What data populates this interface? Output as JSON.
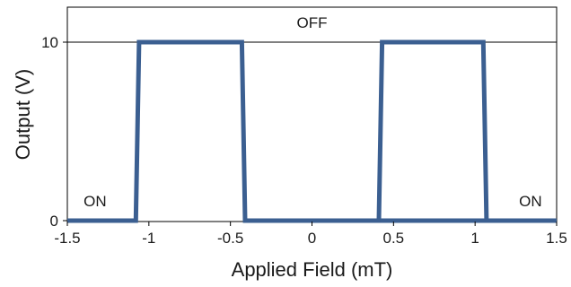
{
  "chart_data": {
    "type": "line",
    "title": "",
    "xlabel": "Applied Field (mT)",
    "ylabel": "Output (V)",
    "xlim": [
      -1.5,
      1.5
    ],
    "ylim": [
      -0.2,
      12
    ],
    "x_ticks": [
      {
        "value": -1.5,
        "label": "-1.5"
      },
      {
        "value": -1,
        "label": "-1"
      },
      {
        "value": -0.5,
        "label": "-0.5"
      },
      {
        "value": 0,
        "label": "0"
      },
      {
        "value": 0.5,
        "label": "0.5"
      },
      {
        "value": 1,
        "label": "1"
      },
      {
        "value": 1.5,
        "label": "1.5"
      }
    ],
    "y_ticks": [
      {
        "value": 0,
        "label": "0"
      },
      {
        "value": 10,
        "label": "10"
      }
    ],
    "grid": false,
    "reference_line": {
      "y": 10
    },
    "color": "#3b5f91",
    "series": [
      {
        "x": [
          -1.5,
          -1.08,
          -1.06,
          -0.43,
          -0.41,
          0.41,
          0.43,
          1.05,
          1.07,
          1.5
        ],
        "values": [
          0,
          0,
          10,
          10,
          0,
          0,
          10,
          10,
          0,
          0
        ]
      },
      {
        "x": [
          -1.07,
          -0.42
        ],
        "values": [
          10,
          10
        ]
      },
      {
        "x": [
          0.42,
          1.06
        ],
        "values": [
          0,
          0
        ]
      }
    ],
    "annotations": [
      {
        "text": "ON",
        "x": -1.33,
        "y": 0.8
      },
      {
        "text": "OFF",
        "x": 0.0,
        "y": 10.8
      },
      {
        "text": "ON",
        "x": 1.34,
        "y": 0.8
      }
    ]
  }
}
